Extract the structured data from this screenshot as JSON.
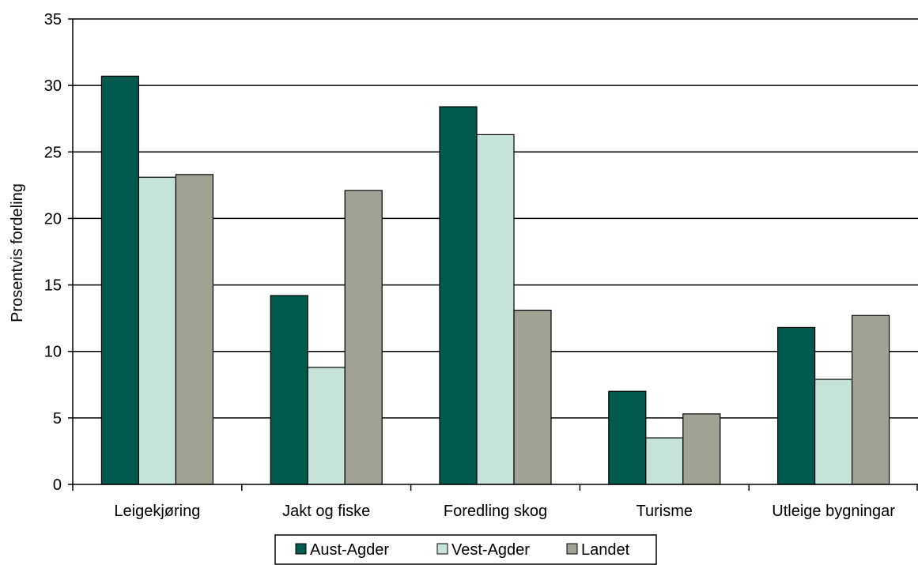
{
  "chart_data": {
    "type": "bar",
    "title": "",
    "xlabel": "",
    "ylabel": "Prosentvis fordeling",
    "ylim": [
      0,
      35
    ],
    "yticks": [
      0,
      5,
      10,
      15,
      20,
      25,
      30,
      35
    ],
    "grid": true,
    "legend_position": "bottom",
    "categories": [
      "Leigekjøring",
      "Jakt og fiske",
      "Foredling skog",
      "Turisme",
      "Utleige bygningar"
    ],
    "series": [
      {
        "name": "Aust-Agder",
        "color": "#005a4e",
        "values": [
          30.7,
          14.2,
          28.4,
          7.0,
          11.8
        ]
      },
      {
        "name": "Vest-Agder",
        "color": "#c6e3d9",
        "values": [
          23.1,
          8.8,
          26.3,
          3.5,
          7.9
        ]
      },
      {
        "name": "Landet",
        "color": "#a2a294",
        "values": [
          23.3,
          22.1,
          13.1,
          5.3,
          12.7
        ]
      }
    ]
  }
}
